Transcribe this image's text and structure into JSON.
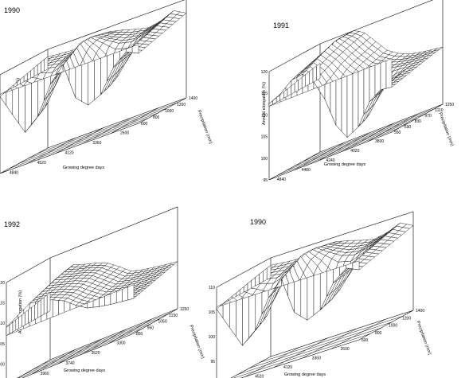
{
  "chart_data": [
    {
      "type": "surface",
      "title": "1990",
      "zlabel": "Annual elongation (%)",
      "xlabel": "Growing degree days",
      "ylabel": "Precipitation (mm)",
      "x_ticks": [
        "4840",
        "4520",
        "4120",
        "3360",
        "2600"
      ],
      "y_ticks": [
        "1400",
        "1200",
        "1000",
        "800",
        "600"
      ],
      "z_ticks": [
        "110",
        "105",
        "100",
        "95",
        "90"
      ],
      "zlim": [
        90,
        110
      ],
      "base": 106,
      "grid_rows": [
        [
          108.5,
          108.2,
          108.0,
          108.3,
          108.6,
          109.0,
          108.4,
          107.6,
          107.0,
          107.5,
          108.6,
          107.2
        ],
        [
          108.0,
          107.5,
          107.2,
          107.8,
          108.2,
          109.5,
          108.1,
          107.0,
          106.6,
          107.0,
          107.9,
          106.6
        ],
        [
          107.4,
          106.8,
          106.2,
          107.0,
          107.8,
          110.0,
          108.2,
          106.5,
          105.8,
          106.4,
          107.2,
          106.0
        ],
        [
          106.8,
          104.8,
          102.5,
          104.5,
          107.2,
          110.2,
          106.4,
          101.2,
          100.8,
          104.2,
          106.6,
          105.4
        ],
        [
          106.2,
          102.2,
          97.8,
          100.2,
          105.6,
          108.8,
          101.6,
          98.2,
          99.4,
          103.6,
          106.0,
          104.8
        ],
        [
          105.6,
          101.0,
          96.5,
          98.8,
          104.4,
          107.4,
          99.8,
          97.4,
          98.6,
          103.2,
          105.4,
          104.2
        ]
      ]
    },
    {
      "type": "surface",
      "title": "1991",
      "zlabel": "Annual elongation (%)",
      "xlabel": "Growing degree days",
      "ylabel": "Precipitation (mm)",
      "x_ticks": [
        "4840",
        "4480",
        "4240",
        "4020",
        "3800"
      ],
      "y_ticks": [
        "1250",
        "1110",
        "970",
        "830",
        "690",
        "550"
      ],
      "z_ticks": [
        "120",
        "115",
        "110",
        "105",
        "100",
        "95"
      ],
      "zlim": [
        95,
        120
      ],
      "base": 112,
      "grid_rows": [
        [
          115.5,
          116.5,
          119.5,
          120.2,
          118.5,
          115.5,
          112.5,
          110.8,
          109.6,
          109.0,
          108.6,
          108.2
        ],
        [
          115.0,
          116.2,
          119.0,
          120.5,
          117.8,
          114.6,
          111.8,
          110.2,
          109.2,
          108.6,
          108.2,
          107.8
        ],
        [
          114.4,
          115.6,
          118.2,
          119.8,
          117.0,
          113.8,
          111.0,
          109.6,
          108.6,
          108.1,
          107.6,
          107.2
        ],
        [
          113.8,
          115.0,
          117.6,
          118.8,
          116.0,
          112.6,
          109.6,
          105.6,
          104.4,
          106.2,
          107.0,
          106.6
        ],
        [
          113.2,
          114.4,
          116.8,
          117.6,
          114.8,
          110.2,
          103.6,
          99.6,
          100.4,
          104.6,
          106.4,
          106.0
        ],
        [
          112.6,
          113.8,
          116.0,
          116.4,
          113.6,
          108.6,
          101.6,
          97.8,
          99.2,
          104.0,
          105.8,
          105.4
        ]
      ]
    },
    {
      "type": "surface",
      "title": "1992",
      "zlabel": "Annual elongation (%)",
      "xlabel": "Growing degree days",
      "ylabel": "Precipitation (mm)",
      "x_ticks": [
        "4160",
        "3960",
        "3740",
        "3520",
        "3300"
      ],
      "y_ticks": [
        "1250",
        "1150",
        "1050",
        "950",
        "850"
      ],
      "z_ticks": [
        "120",
        "115",
        "110",
        "105",
        "100",
        "95"
      ],
      "zlim": [
        95,
        120
      ],
      "base": 107,
      "grid_rows": [
        [
          111.5,
          113.5,
          116.0,
          115.0,
          114.2,
          113.0,
          111.0,
          108.8,
          108.0,
          107.5,
          107.0,
          106.6
        ],
        [
          111.0,
          113.2,
          115.6,
          114.6,
          113.8,
          112.6,
          110.4,
          108.2,
          107.4,
          106.9,
          106.4,
          106.0
        ],
        [
          110.5,
          112.6,
          115.0,
          114.0,
          113.2,
          112.0,
          109.8,
          107.6,
          106.8,
          106.2,
          105.8,
          105.4
        ],
        [
          110.0,
          112.0,
          114.2,
          113.4,
          112.5,
          111.2,
          109.0,
          107.0,
          106.2,
          105.6,
          105.2,
          104.8
        ],
        [
          109.5,
          111.4,
          113.4,
          112.8,
          111.8,
          110.5,
          108.2,
          106.4,
          105.6,
          105.0,
          104.6,
          104.2
        ],
        [
          109.0,
          110.8,
          112.6,
          112.2,
          111.2,
          109.8,
          107.6,
          105.8,
          105.0,
          104.4,
          104.0,
          103.6
        ]
      ]
    },
    {
      "type": "surface",
      "title": "1990",
      "zlabel": "Annual elongation (%)",
      "xlabel": "Growing degree days",
      "ylabel": "Precipitation (mm)",
      "x_ticks": [
        "4840",
        "4520",
        "4120",
        "3360",
        "2600"
      ],
      "y_ticks": [
        "1400",
        "1200",
        "1000",
        "800",
        "600"
      ],
      "z_ticks": [
        "110",
        "105",
        "100",
        "95",
        "90"
      ],
      "zlim": [
        90,
        110
      ],
      "base": 106,
      "grid_rows": [
        [
          108.5,
          108.2,
          108.0,
          108.3,
          108.6,
          109.0,
          108.4,
          107.6,
          107.0,
          107.5,
          108.6,
          107.2
        ],
        [
          108.0,
          107.5,
          107.2,
          107.8,
          108.2,
          109.5,
          108.1,
          107.0,
          106.6,
          107.0,
          107.9,
          106.6
        ],
        [
          107.4,
          106.8,
          106.2,
          107.0,
          107.8,
          110.0,
          108.2,
          106.5,
          105.8,
          106.4,
          107.2,
          106.0
        ],
        [
          106.8,
          104.8,
          102.5,
          104.5,
          107.2,
          110.2,
          106.4,
          101.2,
          100.8,
          104.2,
          106.6,
          105.4
        ],
        [
          106.2,
          102.2,
          97.8,
          100.2,
          105.6,
          108.8,
          101.6,
          98.2,
          99.4,
          103.6,
          106.0,
          104.8
        ],
        [
          105.6,
          101.0,
          96.5,
          98.8,
          104.4,
          107.4,
          99.8,
          97.4,
          98.6,
          103.2,
          105.4,
          104.2
        ]
      ]
    }
  ]
}
